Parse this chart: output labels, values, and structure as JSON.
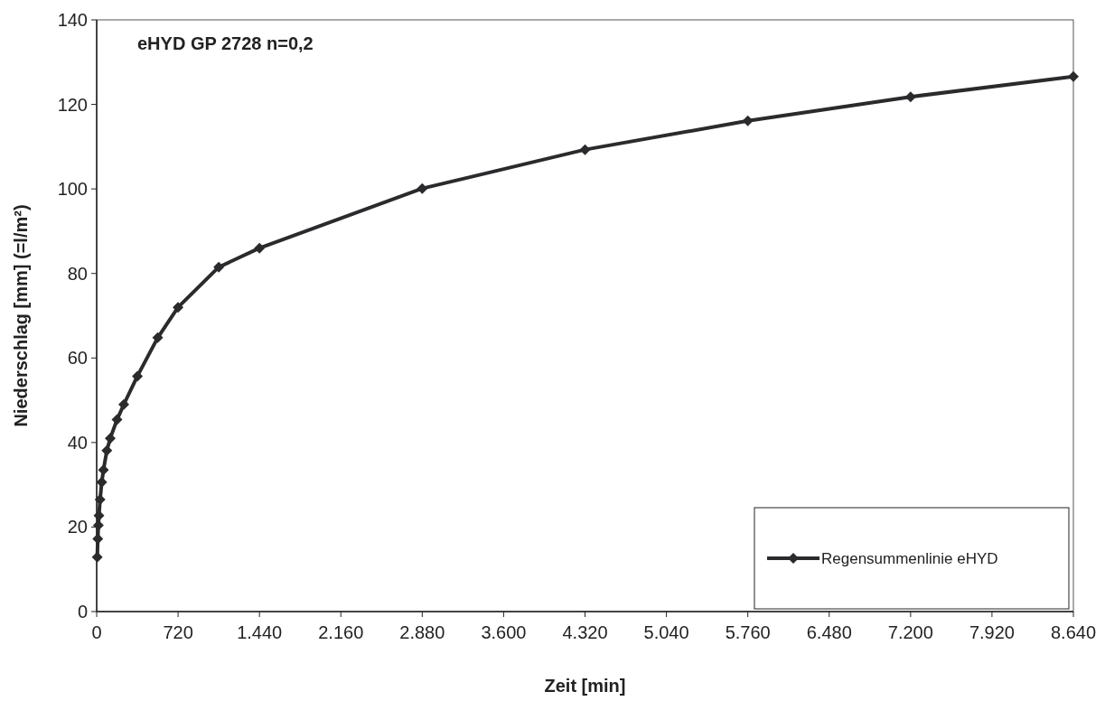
{
  "chart_data": {
    "type": "line",
    "title": "eHYD GP 2728 n=0,2",
    "xlabel": "Zeit [min]",
    "ylabel": "Niederschlag [mm] (=l/m²)",
    "series": [
      {
        "name": "Regensummenlinie eHYD",
        "color": "#2b2b2e",
        "x": [
          5,
          10,
          15,
          20,
          30,
          45,
          60,
          90,
          120,
          180,
          240,
          360,
          540,
          720,
          1080,
          1440,
          2880,
          4320,
          5760,
          7200,
          8640
        ],
        "values": [
          12.9,
          17.2,
          20.4,
          22.7,
          26.5,
          30.6,
          33.5,
          38.1,
          41.0,
          45.4,
          49.0,
          55.7,
          64.8,
          72.0,
          81.5,
          86.0,
          100.1,
          109.3,
          116.1,
          121.8,
          126.6
        ]
      }
    ],
    "xlim": [
      0,
      8640
    ],
    "ylim": [
      0,
      140
    ],
    "xticks": [
      0,
      720,
      {
        "value": 1440,
        "label": "1.440"
      },
      {
        "value": 2160,
        "label": "2.160"
      },
      {
        "value": 2880,
        "label": "2.880"
      },
      {
        "value": 3600,
        "label": "3.600"
      },
      {
        "value": 4320,
        "label": "4.320"
      },
      {
        "value": 5040,
        "label": "5.040"
      },
      {
        "value": 5760,
        "label": "5.760"
      },
      {
        "value": 6480,
        "label": "6.480"
      },
      {
        "value": 7200,
        "label": "7.200"
      },
      {
        "value": 7920,
        "label": "7.920"
      },
      {
        "value": 8640,
        "label": "8.640"
      }
    ],
    "yticks": [
      0,
      20,
      40,
      60,
      80,
      100,
      120,
      140
    ],
    "grid": false,
    "legend": "bottom right",
    "marker": "diamond",
    "line_style": "solid"
  }
}
